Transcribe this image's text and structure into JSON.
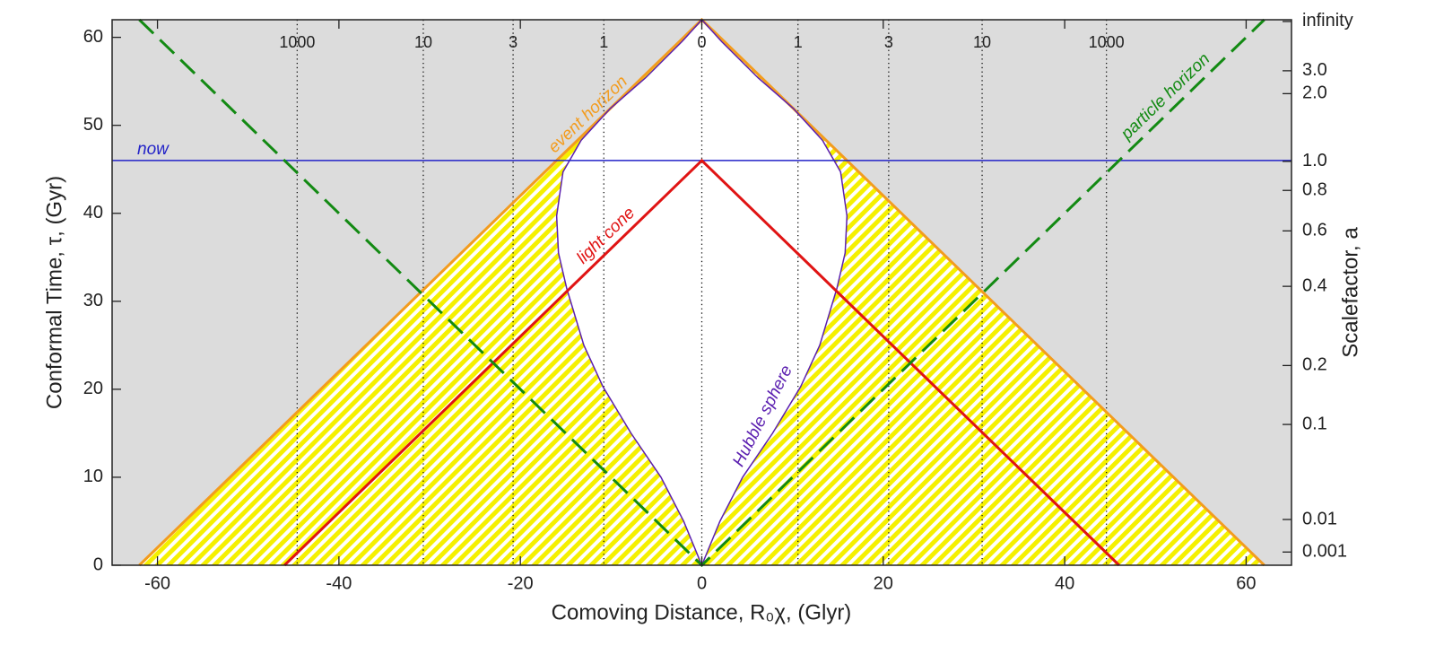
{
  "chart_data": {
    "type": "line",
    "xlabel": "Comoving Distance, R₀χ, (Glyr)",
    "ylabel": "Conformal Time, τ, (Gyr)",
    "y2label": "Scalefactor, a",
    "xlim": [
      -65,
      65
    ],
    "ylim": [
      0,
      62
    ],
    "xticks": [
      -60,
      -40,
      -20,
      0,
      20,
      40,
      60
    ],
    "yticks": [
      0,
      10,
      20,
      30,
      40,
      50,
      60
    ],
    "y2ticks": [
      {
        "label": "infinity",
        "tau": 61.8
      },
      {
        "value": 3,
        "label": "3.0",
        "tau": 56.2
      },
      {
        "value": 2,
        "label": "2.0",
        "tau": 53.6
      },
      {
        "value": 1,
        "label": "1.0",
        "tau": 45.9
      },
      {
        "value": 0.8,
        "label": "0.8",
        "tau": 42.6
      },
      {
        "value": 0.6,
        "label": "0.6",
        "tau": 38.0
      },
      {
        "value": 0.4,
        "label": "0.4",
        "tau": 31.7
      },
      {
        "value": 0.2,
        "label": "0.2",
        "tau": 22.7
      },
      {
        "value": 0.1,
        "label": "0.1",
        "tau": 16.0
      },
      {
        "value": 0.01,
        "label": "0.01",
        "tau": 5.2
      },
      {
        "value": 0.001,
        "label": "0.001",
        "tau": 1.5
      }
    ],
    "redshift_ticks": [
      {
        "value": 1000,
        "x": -44.6
      },
      {
        "value": 10,
        "x": -30.7
      },
      {
        "value": 3,
        "x": -20.8
      },
      {
        "value": 1,
        "x": -10.8
      },
      {
        "value": 0,
        "x": 0
      },
      {
        "value": 1,
        "x": 10.6
      },
      {
        "value": 3,
        "x": 20.6
      },
      {
        "value": 10,
        "x": 30.9
      },
      {
        "value": 1000,
        "x": 44.6
      }
    ],
    "series": [
      {
        "name": "event horizon",
        "color": "#f39c1e",
        "x": [
          -62,
          0,
          62
        ],
        "values": [
          0,
          62,
          0
        ]
      },
      {
        "name": "Hubble sphere",
        "color": "#5b1fb0",
        "x": [
          0,
          -2,
          -4.5,
          -7.8,
          -10.9,
          -13,
          -14.9,
          -15.8,
          -16,
          -15.3,
          -13.3,
          -10.1,
          -6.2,
          -2.2,
          0,
          2.2,
          6.2,
          10.1,
          13.3,
          15.3,
          16,
          15.8,
          14.9,
          13,
          10.9,
          7.8,
          4.5,
          2,
          0
        ],
        "values": [
          0,
          5,
          10,
          15,
          20.3,
          25,
          31.5,
          35.5,
          39.7,
          44.7,
          48.3,
          51.9,
          55.4,
          59.5,
          62,
          59.5,
          55.4,
          51.9,
          48.3,
          44.7,
          39.7,
          35.5,
          31.5,
          25,
          20.3,
          15,
          10,
          5,
          0
        ]
      },
      {
        "name": "now",
        "color": "#2323c8",
        "x": [
          -65,
          65
        ],
        "values": [
          46,
          46
        ]
      },
      {
        "name": "light cone",
        "color": "#e01414",
        "x": [
          -46,
          0,
          46
        ],
        "values": [
          0,
          46,
          0
        ]
      },
      {
        "name": "particle horizon",
        "color": "#138a13",
        "dashed": true,
        "x": [
          -62,
          0,
          62
        ],
        "values": [
          62,
          0,
          62
        ]
      }
    ]
  }
}
